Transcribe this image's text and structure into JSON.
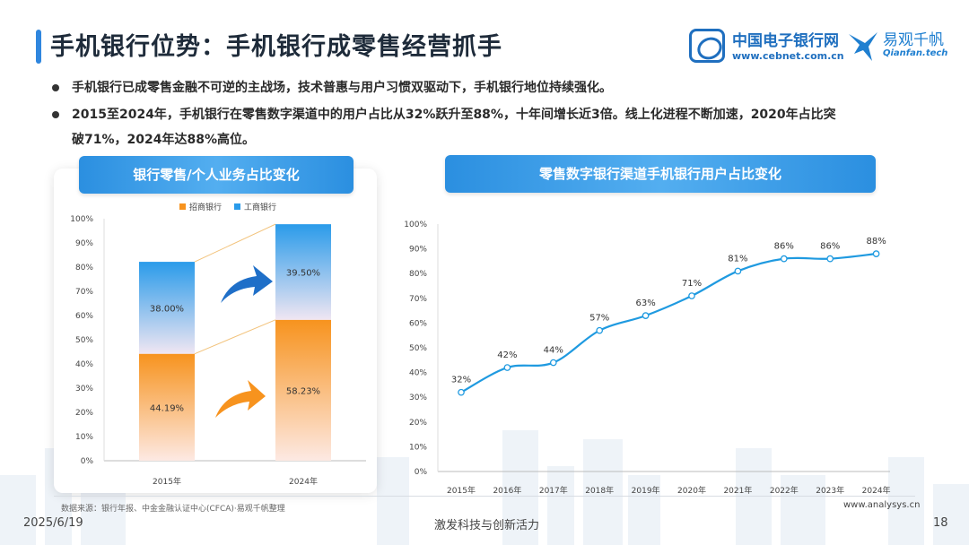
{
  "header": {
    "title": "手机银行位势：手机银行成零售经营抓手",
    "logo_cebnet_name": "中国电子银行网",
    "logo_cebnet_url": "www.cebnet.com.cn",
    "logo_qianfan_name": "易观千帆",
    "logo_qianfan_sub": "Qianfan.tech"
  },
  "bullets": [
    "手机银行已成零售金融不可逆的主战场，技术普惠与用户习惯双驱动下，手机银行地位持续强化。",
    "2015至2024年，手机银行在零售数字渠道中的用户占比从32%跃升至88%，十年间增长近3倍。线上化进程不断加速，2020年占比突",
    "破71%，2024年达88%高位。"
  ],
  "colors": {
    "accent": "#2f86de",
    "cmb_orange": "#f7931e",
    "icbc_blue": "#2a9bea",
    "line_blue": "#1f9ae0"
  },
  "chart_data": [
    {
      "type": "bar",
      "title": "银行零售/个人业务占比变化",
      "categories": [
        "2015年",
        "2024年"
      ],
      "series": [
        {
          "name": "招商银行",
          "values": [
            44.19,
            58.23
          ],
          "labels": [
            "44.19%",
            "58.23%"
          ],
          "color": "#f7931e"
        },
        {
          "name": "工商银行",
          "values": [
            38.0,
            39.5
          ],
          "labels": [
            "38.00%",
            "39.50%"
          ],
          "color": "#2a9bea"
        }
      ],
      "yticks": [
        "0%",
        "10%",
        "20%",
        "30%",
        "40%",
        "50%",
        "60%",
        "70%",
        "80%",
        "90%",
        "100%"
      ],
      "ylim": [
        0,
        100
      ],
      "legend": "top"
    },
    {
      "type": "line",
      "title": "零售数字银行渠道手机银行用户占比变化",
      "x": [
        "2015年",
        "2016年",
        "2017年",
        "2018年",
        "2019年",
        "2020年",
        "2021年",
        "2022年",
        "2023年",
        "2024年"
      ],
      "values": [
        32,
        42,
        44,
        57,
        63,
        71,
        81,
        86,
        86,
        88
      ],
      "labels": [
        "32%",
        "42%",
        "44%",
        "57%",
        "63%",
        "71%",
        "81%",
        "86%",
        "86%",
        "88%"
      ],
      "yticks": [
        "0%",
        "10%",
        "20%",
        "30%",
        "40%",
        "50%",
        "60%",
        "70%",
        "80%",
        "90%",
        "100%"
      ],
      "ylim": [
        0,
        100
      ]
    }
  ],
  "footer": {
    "source": "数据来源：银行年报、中金金融认证中心(CFCA)·易观千帆整理",
    "source_url": "www.analysys.cn",
    "date": "2025/6/19",
    "slogan": "激发科技与创新活力",
    "page": "18"
  }
}
